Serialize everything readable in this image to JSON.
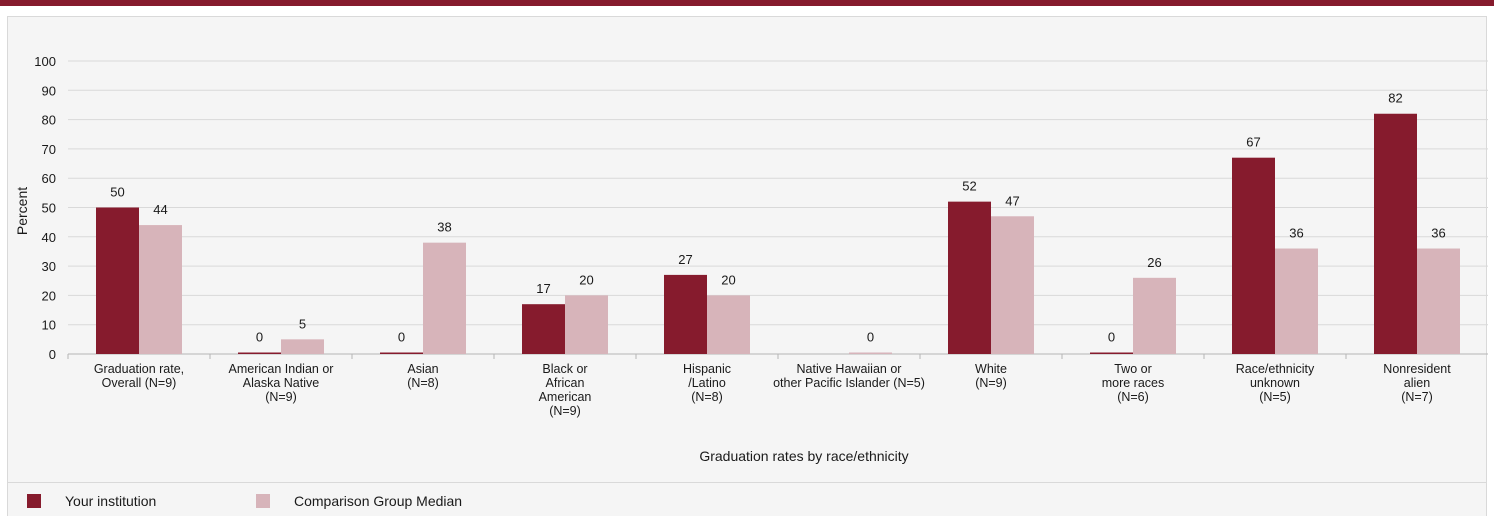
{
  "colors": {
    "institution": "#861b2d",
    "comparison": "#d7b4ba",
    "accent": "#861b2d"
  },
  "chart_data": {
    "type": "bar",
    "ylabel": "Percent",
    "xlabel": "Graduation rates by race/ethnicity",
    "ylim": [
      0,
      100
    ],
    "y_ticks": [
      "0",
      "10",
      "20",
      "30",
      "40",
      "50",
      "60",
      "70",
      "80",
      "90",
      "100"
    ],
    "grid": true,
    "legend_position": "bottom",
    "categories": [
      [
        "Graduation rate,",
        "Overall (N=9)"
      ],
      [
        "American Indian or",
        "Alaska Native",
        "(N=9)"
      ],
      [
        "Asian",
        "(N=8)"
      ],
      [
        "Black or",
        "African",
        "American",
        "(N=9)"
      ],
      [
        "Hispanic",
        "/Latino",
        "(N=8)"
      ],
      [
        "Native Hawaiian or",
        "other Pacific Islander (N=5)"
      ],
      [
        "White",
        "(N=9)"
      ],
      [
        "Two or",
        "more races",
        "(N=6)"
      ],
      [
        "Race/ethnicity",
        "unknown",
        "(N=5)"
      ],
      [
        "Nonresident",
        "alien",
        "(N=7)"
      ]
    ],
    "series": [
      {
        "name": "Your institution",
        "values": [
          50,
          0,
          0,
          17,
          27,
          null,
          52,
          0,
          67,
          82
        ],
        "labels": [
          "50",
          "0",
          "0",
          "17",
          "27",
          "",
          "52",
          "0",
          "67",
          "82"
        ]
      },
      {
        "name": "Comparison Group Median",
        "values": [
          44,
          5,
          38,
          20,
          20,
          0,
          47,
          26,
          36,
          36
        ],
        "labels": [
          "44",
          "5",
          "38",
          "20",
          "20",
          "0",
          "47",
          "26",
          "36",
          "36"
        ]
      }
    ]
  }
}
